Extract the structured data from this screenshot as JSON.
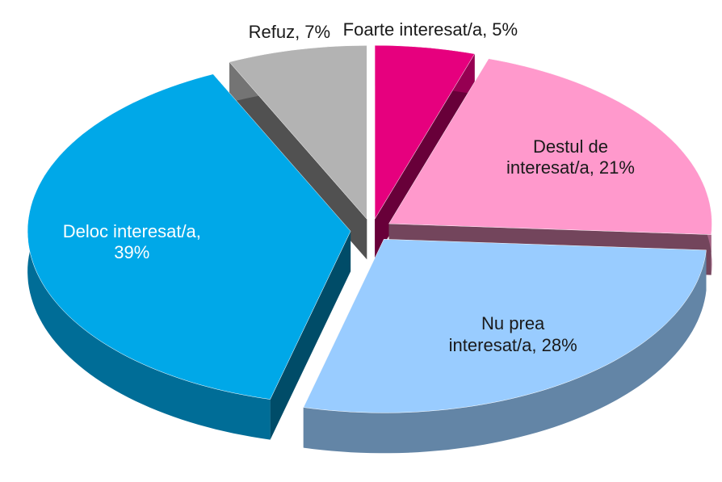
{
  "chart_data": {
    "type": "pie",
    "values": [
      5,
      21,
      28,
      39,
      7
    ],
    "value_labels": [
      "Foarte interesat/a, 5%",
      "Destul de interesat/a, 21%",
      "Nu prea interesat/a, 28%",
      "Deloc interesat/a, 39%",
      "Refuz, 7%"
    ],
    "colors": [
      "#e6007e",
      "#ff99cc",
      "#99ccff",
      "#00a8e8",
      "#b3b3b3"
    ],
    "start_angle": -90,
    "exploded": true,
    "three_d": true
  }
}
